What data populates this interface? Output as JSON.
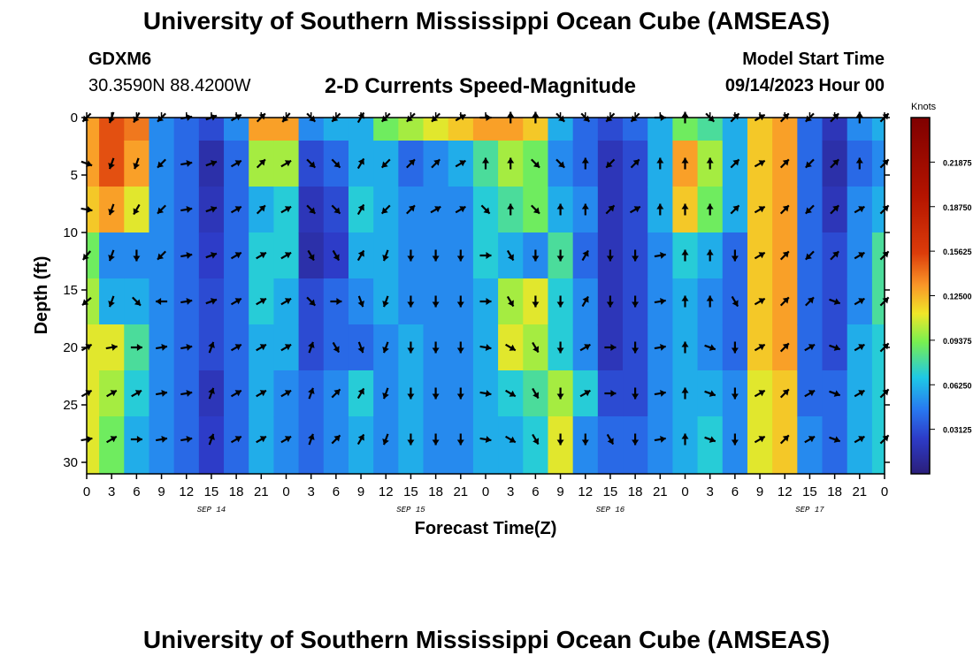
{
  "header": {
    "title": "University of Southern Mississippi Ocean Cube (AMSEAS)",
    "station": "GDXM6",
    "coordinates": "30.3590N  88.4200W",
    "plot_title": "2-D Currents Speed-Magnitude",
    "start_label": "Model Start Time",
    "start_value": "09/14/2023 Hour 00"
  },
  "footer": {
    "title": "University of Southern Mississippi Ocean Cube (AMSEAS)"
  },
  "colors": {
    "low": "#2b1e7a",
    "mid": "#7ef04a",
    "high": "#7f0000",
    "arrow": "#000000"
  },
  "chart_data": {
    "type": "heatmap",
    "title": "2-D Currents Speed-Magnitude",
    "xlabel": "Forecast Time(Z)",
    "ylabel": "Depth (ft)",
    "units": "Knots",
    "x_tick_labels": [
      "0",
      "3",
      "6",
      "9",
      "12",
      "15",
      "18",
      "21",
      "0",
      "3",
      "6",
      "9",
      "12",
      "15",
      "18",
      "21",
      "0",
      "3",
      "6",
      "9",
      "12",
      "15",
      "18",
      "21",
      "0",
      "3",
      "6",
      "9",
      "12",
      "15",
      "18",
      "21",
      "0"
    ],
    "date_labels": [
      "SEP 14",
      "SEP 15",
      "SEP 16",
      "SEP 17"
    ],
    "y_ticks": [
      0,
      5,
      10,
      15,
      20,
      25,
      30
    ],
    "ylim": [
      0,
      31
    ],
    "xlim_hours": [
      0,
      96
    ],
    "colorbar_ticks": [
      "0.21875",
      "0.18750",
      "0.15625",
      "0.12500",
      "0.09375",
      "0.06250",
      "0.03125"
    ],
    "colorbar_range": [
      0,
      0.25
    ],
    "arrow_depths_ft": [
      0,
      4,
      8,
      12,
      16,
      20,
      24,
      28
    ],
    "arrow_interval_hours": 3,
    "speed_profiles": [
      {
        "hour": 0,
        "values": [
          0.13,
          0.13,
          0.12,
          0.09,
          0.1,
          0.11,
          0.11,
          0.11
        ]
      },
      {
        "hour": 3,
        "values": [
          0.15,
          0.15,
          0.13,
          0.05,
          0.06,
          0.11,
          0.1,
          0.09
        ]
      },
      {
        "hour": 6,
        "values": [
          0.14,
          0.13,
          0.11,
          0.05,
          0.06,
          0.08,
          0.07,
          0.06
        ]
      },
      {
        "hour": 9,
        "values": [
          0.05,
          0.05,
          0.05,
          0.05,
          0.05,
          0.05,
          0.05,
          0.05
        ]
      },
      {
        "hour": 12,
        "values": [
          0.04,
          0.04,
          0.04,
          0.04,
          0.04,
          0.04,
          0.04,
          0.04
        ]
      },
      {
        "hour": 15,
        "values": [
          0.03,
          0.015,
          0.02,
          0.025,
          0.03,
          0.03,
          0.02,
          0.025
        ]
      },
      {
        "hour": 18,
        "values": [
          0.05,
          0.04,
          0.04,
          0.04,
          0.04,
          0.04,
          0.04,
          0.04
        ]
      },
      {
        "hour": 21,
        "values": [
          0.13,
          0.1,
          0.06,
          0.07,
          0.07,
          0.06,
          0.06,
          0.06
        ]
      },
      {
        "hour": 24,
        "values": [
          0.13,
          0.1,
          0.07,
          0.07,
          0.06,
          0.06,
          0.05,
          0.05
        ]
      },
      {
        "hour": 27,
        "values": [
          0.05,
          0.03,
          0.02,
          0.015,
          0.03,
          0.03,
          0.04,
          0.04
        ]
      },
      {
        "hour": 30,
        "values": [
          0.06,
          0.04,
          0.03,
          0.025,
          0.04,
          0.04,
          0.05,
          0.05
        ]
      },
      {
        "hour": 33,
        "values": [
          0.06,
          0.06,
          0.07,
          0.06,
          0.05,
          0.04,
          0.07,
          0.06
        ]
      },
      {
        "hour": 36,
        "values": [
          0.09,
          0.06,
          0.06,
          0.06,
          0.06,
          0.05,
          0.05,
          0.05
        ]
      },
      {
        "hour": 39,
        "values": [
          0.1,
          0.04,
          0.05,
          0.05,
          0.05,
          0.06,
          0.06,
          0.06
        ]
      },
      {
        "hour": 42,
        "values": [
          0.11,
          0.05,
          0.05,
          0.05,
          0.05,
          0.05,
          0.05,
          0.05
        ]
      },
      {
        "hour": 45,
        "values": [
          0.12,
          0.06,
          0.05,
          0.05,
          0.05,
          0.05,
          0.05,
          0.05
        ]
      },
      {
        "hour": 48,
        "values": [
          0.13,
          0.08,
          0.07,
          0.07,
          0.06,
          0.06,
          0.06,
          0.06
        ]
      },
      {
        "hour": 51,
        "values": [
          0.13,
          0.1,
          0.08,
          0.06,
          0.1,
          0.11,
          0.07,
          0.06
        ]
      },
      {
        "hour": 54,
        "values": [
          0.12,
          0.09,
          0.09,
          0.05,
          0.11,
          0.1,
          0.08,
          0.07
        ]
      },
      {
        "hour": 57,
        "values": [
          0.06,
          0.05,
          0.06,
          0.08,
          0.07,
          0.07,
          0.1,
          0.11
        ]
      },
      {
        "hour": 60,
        "values": [
          0.04,
          0.04,
          0.05,
          0.04,
          0.05,
          0.05,
          0.07,
          0.05
        ]
      },
      {
        "hour": 63,
        "values": [
          0.03,
          0.02,
          0.02,
          0.02,
          0.02,
          0.02,
          0.03,
          0.04
        ]
      },
      {
        "hour": 66,
        "values": [
          0.04,
          0.03,
          0.03,
          0.03,
          0.03,
          0.03,
          0.03,
          0.04
        ]
      },
      {
        "hour": 69,
        "values": [
          0.06,
          0.06,
          0.06,
          0.05,
          0.05,
          0.05,
          0.05,
          0.05
        ]
      },
      {
        "hour": 72,
        "values": [
          0.09,
          0.13,
          0.12,
          0.07,
          0.06,
          0.06,
          0.06,
          0.06
        ]
      },
      {
        "hour": 75,
        "values": [
          0.08,
          0.1,
          0.09,
          0.06,
          0.05,
          0.05,
          0.06,
          0.07
        ]
      },
      {
        "hour": 78,
        "values": [
          0.06,
          0.06,
          0.06,
          0.04,
          0.04,
          0.04,
          0.05,
          0.05
        ]
      },
      {
        "hour": 81,
        "values": [
          0.12,
          0.12,
          0.12,
          0.12,
          0.12,
          0.12,
          0.11,
          0.11
        ]
      },
      {
        "hour": 84,
        "values": [
          0.13,
          0.13,
          0.13,
          0.13,
          0.13,
          0.13,
          0.12,
          0.12
        ]
      },
      {
        "hour": 87,
        "values": [
          0.04,
          0.04,
          0.04,
          0.04,
          0.04,
          0.04,
          0.04,
          0.05
        ]
      },
      {
        "hour": 90,
        "values": [
          0.02,
          0.015,
          0.02,
          0.03,
          0.03,
          0.03,
          0.04,
          0.04
        ]
      },
      {
        "hour": 93,
        "values": [
          0.05,
          0.04,
          0.05,
          0.05,
          0.05,
          0.06,
          0.06,
          0.06
        ]
      },
      {
        "hour": 96,
        "values": [
          0.06,
          0.05,
          0.06,
          0.08,
          0.08,
          0.07,
          0.07,
          0.07
        ]
      }
    ],
    "direction_profiles_deg": [
      {
        "hour": 0,
        "values": [
          225,
          110,
          100,
          220,
          230,
          60,
          60,
          80
        ]
      },
      {
        "hour": 3,
        "values": [
          200,
          200,
          200,
          200,
          200,
          80,
          60,
          60
        ]
      },
      {
        "hour": 6,
        "values": [
          210,
          200,
          210,
          180,
          135,
          90,
          60,
          90
        ]
      },
      {
        "hour": 9,
        "values": [
          225,
          225,
          225,
          225,
          270,
          80,
          80,
          80
        ]
      },
      {
        "hour": 12,
        "values": [
          80,
          80,
          80,
          80,
          80,
          80,
          80,
          80
        ]
      },
      {
        "hour": 15,
        "values": [
          70,
          70,
          70,
          70,
          70,
          20,
          20,
          20
        ]
      },
      {
        "hour": 18,
        "values": [
          60,
          60,
          60,
          60,
          60,
          60,
          60,
          60
        ]
      },
      {
        "hour": 21,
        "values": [
          45,
          45,
          45,
          60,
          60,
          60,
          60,
          60
        ]
      },
      {
        "hour": 24,
        "values": [
          220,
          60,
          60,
          60,
          60,
          60,
          60,
          60
        ]
      },
      {
        "hour": 27,
        "values": [
          135,
          135,
          135,
          150,
          135,
          20,
          20,
          20
        ]
      },
      {
        "hour": 30,
        "values": [
          225,
          135,
          135,
          150,
          90,
          150,
          45,
          45
        ]
      },
      {
        "hour": 33,
        "values": [
          30,
          30,
          30,
          30,
          160,
          160,
          30,
          30
        ]
      },
      {
        "hour": 36,
        "values": [
          225,
          225,
          225,
          200,
          200,
          200,
          200,
          200
        ]
      },
      {
        "hour": 39,
        "values": [
          225,
          45,
          45,
          180,
          180,
          180,
          180,
          180
        ]
      },
      {
        "hour": 42,
        "values": [
          225,
          45,
          60,
          180,
          180,
          180,
          180,
          180
        ]
      },
      {
        "hour": 45,
        "values": [
          60,
          60,
          60,
          180,
          180,
          180,
          180,
          180
        ]
      },
      {
        "hour": 48,
        "values": [
          90,
          0,
          135,
          90,
          90,
          100,
          100,
          100
        ]
      },
      {
        "hour": 51,
        "values": [
          0,
          0,
          0,
          150,
          150,
          120,
          120,
          120
        ]
      },
      {
        "hour": 54,
        "values": [
          0,
          135,
          135,
          180,
          180,
          150,
          150,
          150
        ]
      },
      {
        "hour": 57,
        "values": [
          135,
          135,
          0,
          180,
          180,
          180,
          180,
          180
        ]
      },
      {
        "hour": 60,
        "values": [
          135,
          0,
          0,
          30,
          30,
          60,
          60,
          180
        ]
      },
      {
        "hour": 63,
        "values": [
          225,
          225,
          45,
          180,
          180,
          90,
          90,
          150
        ]
      },
      {
        "hour": 66,
        "values": [
          225,
          45,
          60,
          180,
          180,
          180,
          180,
          180
        ]
      },
      {
        "hour": 69,
        "values": [
          90,
          0,
          0,
          80,
          80,
          80,
          80,
          80
        ]
      },
      {
        "hour": 72,
        "values": [
          0,
          0,
          0,
          0,
          0,
          0,
          0,
          0
        ]
      },
      {
        "hour": 75,
        "values": [
          135,
          0,
          0,
          0,
          0,
          110,
          110,
          110
        ]
      },
      {
        "hour": 78,
        "values": [
          45,
          45,
          45,
          180,
          150,
          180,
          180,
          180
        ]
      },
      {
        "hour": 81,
        "values": [
          60,
          60,
          60,
          60,
          60,
          60,
          60,
          60
        ]
      },
      {
        "hour": 84,
        "values": [
          45,
          45,
          45,
          45,
          45,
          45,
          45,
          45
        ]
      },
      {
        "hour": 87,
        "values": [
          225,
          225,
          225,
          225,
          45,
          60,
          60,
          60
        ]
      },
      {
        "hour": 90,
        "values": [
          45,
          45,
          45,
          45,
          110,
          110,
          110,
          110
        ]
      },
      {
        "hour": 93,
        "values": [
          0,
          0,
          60,
          60,
          60,
          60,
          60,
          60
        ]
      },
      {
        "hour": 96,
        "values": [
          45,
          45,
          45,
          45,
          45,
          45,
          45,
          45
        ]
      }
    ]
  }
}
